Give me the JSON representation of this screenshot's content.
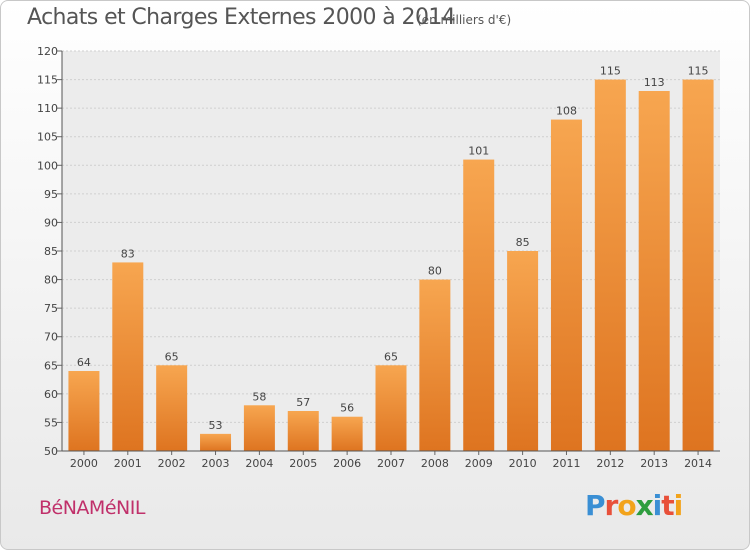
{
  "header": {
    "title": "Achats et Charges Externes 2000 à 2014",
    "subtitle": "(en milliers d'€)"
  },
  "commune": "BéNAMéNIL",
  "logo": {
    "text": "Proxiti",
    "letters": [
      {
        "ch": "P",
        "color": "#3a8fd4"
      },
      {
        "ch": "r",
        "color": "#e8503a"
      },
      {
        "ch": "o",
        "color": "#f2a31b"
      },
      {
        "ch": "x",
        "color": "#2e9d3e"
      },
      {
        "ch": "i",
        "color": "#3a8fd4"
      },
      {
        "ch": "t",
        "color": "#e8503a"
      },
      {
        "ch": "i",
        "color": "#f2a31b"
      }
    ]
  },
  "colors": {
    "bar_light": "#f7a650",
    "bar_dark": "#de7420",
    "commune": "#c0306a"
  },
  "chart_data": {
    "type": "bar",
    "title": "Achats et Charges Externes 2000 à 2014",
    "subtitle": "(en milliers d'€)",
    "xlabel": "",
    "ylabel": "",
    "categories": [
      "2000",
      "2001",
      "2002",
      "2003",
      "2004",
      "2005",
      "2006",
      "2007",
      "2008",
      "2009",
      "2010",
      "2011",
      "2012",
      "2013",
      "2014"
    ],
    "values": [
      64,
      83,
      65,
      53,
      58,
      57,
      56,
      65,
      80,
      101,
      85,
      108,
      115,
      113,
      115
    ],
    "ylim": [
      50,
      120
    ],
    "yticks": [
      50,
      55,
      60,
      65,
      70,
      75,
      80,
      85,
      90,
      95,
      100,
      105,
      110,
      115,
      120
    ],
    "grid": true,
    "data_labels": true
  }
}
